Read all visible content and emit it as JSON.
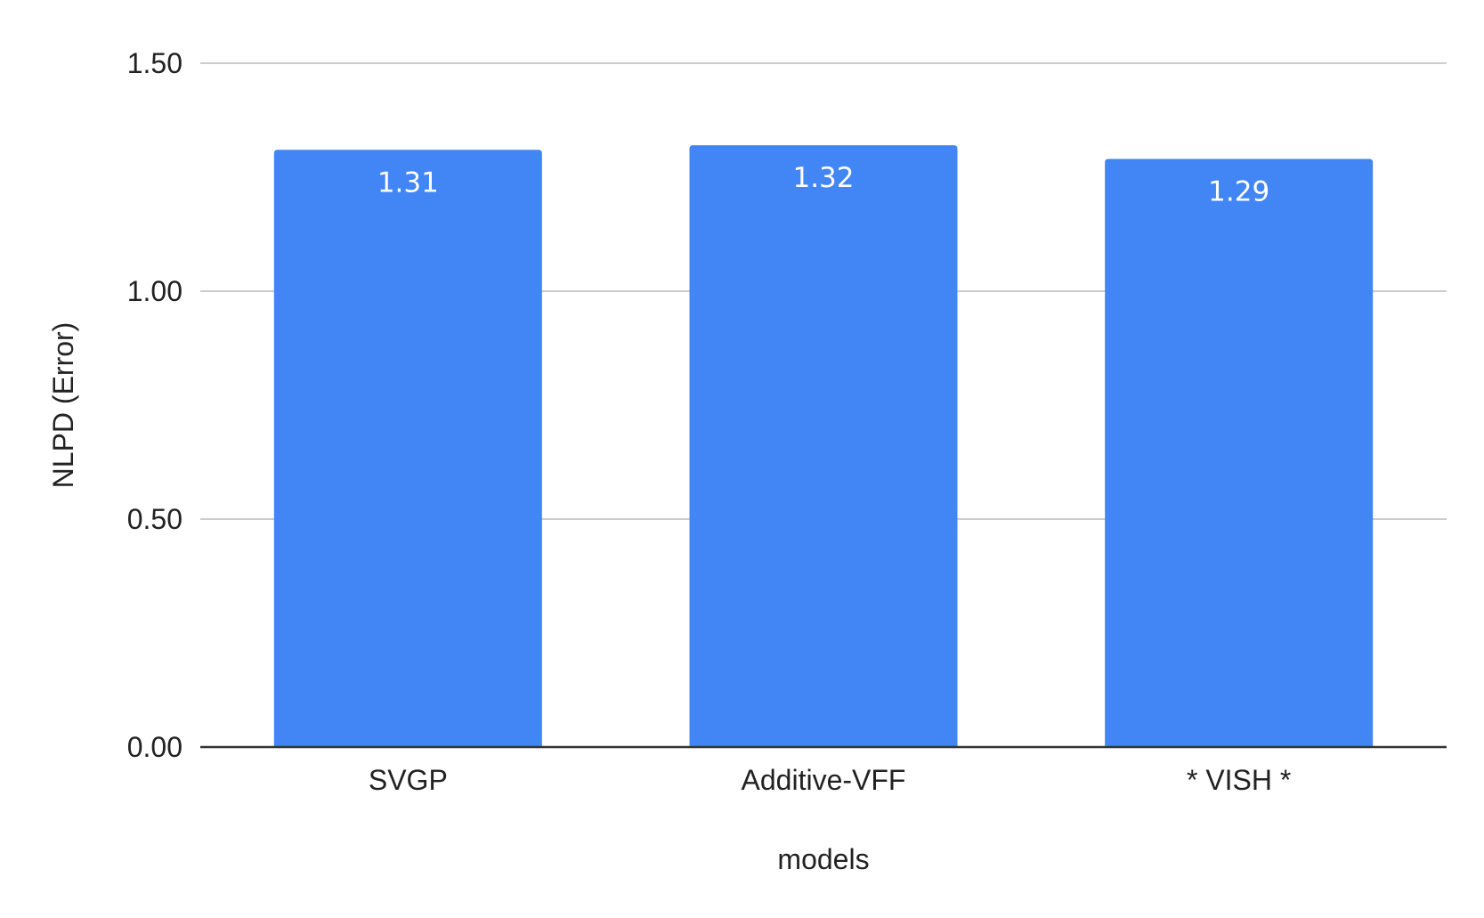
{
  "chart_data": {
    "type": "bar",
    "title": "",
    "xlabel": "models",
    "ylabel": "NLPD (Error)",
    "categories": [
      "SVGP",
      "Additive-VFF",
      "* VISH *"
    ],
    "values": [
      1.31,
      1.32,
      1.29
    ],
    "data_labels": [
      "1.31",
      "1.32",
      "1.29"
    ],
    "ylim": [
      0,
      1.5
    ],
    "y_ticks": [
      0,
      0.5,
      1.0,
      1.5
    ],
    "y_tick_labels": [
      "0.00",
      "0.50",
      "1.00",
      "1.50"
    ],
    "grid": true,
    "legend": "none",
    "bar_color": "#4285f4"
  }
}
